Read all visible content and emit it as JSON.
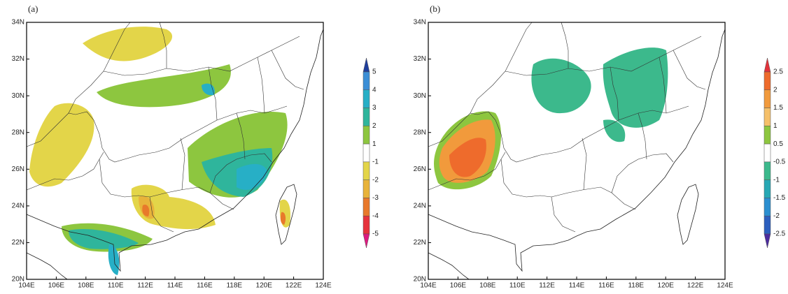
{
  "panels": [
    {
      "label": "(a)",
      "xlim": [
        104,
        124
      ],
      "ylim": [
        20,
        34
      ],
      "xticks": [
        {
          "value": 104,
          "label": "104E"
        },
        {
          "value": 106,
          "label": "106E"
        },
        {
          "value": 108,
          "label": "108E"
        },
        {
          "value": 110,
          "label": "110E"
        },
        {
          "value": 112,
          "label": "112E"
        },
        {
          "value": 114,
          "label": "114E"
        },
        {
          "value": 116,
          "label": "116E"
        },
        {
          "value": 118,
          "label": "118E"
        },
        {
          "value": 120,
          "label": "120E"
        },
        {
          "value": 122,
          "label": "122E"
        },
        {
          "value": 124,
          "label": "124E"
        }
      ],
      "yticks": [
        {
          "value": 20,
          "label": "20N"
        },
        {
          "value": 22,
          "label": "22N"
        },
        {
          "value": 24,
          "label": "24N"
        },
        {
          "value": 26,
          "label": "26N"
        },
        {
          "value": 28,
          "label": "28N"
        },
        {
          "value": 30,
          "label": "30N"
        },
        {
          "value": 32,
          "label": "32N"
        },
        {
          "value": 34,
          "label": "34N"
        }
      ],
      "colorbar": {
        "levels": [
          5,
          4,
          3,
          2,
          1,
          -1,
          -2,
          -3,
          -4,
          -5
        ],
        "colors": [
          "#1f3e9c",
          "#3b8ed6",
          "#27afc6",
          "#2fb59c",
          "#8dc63f",
          "#ffffff",
          "#e3d549",
          "#e8b33a",
          "#e8792b",
          "#e6323c",
          "#dd1a80"
        ]
      }
    },
    {
      "label": "(b)",
      "xlim": [
        104,
        124
      ],
      "ylim": [
        20,
        34
      ],
      "xticks": [
        {
          "value": 104,
          "label": "104E"
        },
        {
          "value": 106,
          "label": "106E"
        },
        {
          "value": 108,
          "label": "108E"
        },
        {
          "value": 110,
          "label": "110E"
        },
        {
          "value": 112,
          "label": "112E"
        },
        {
          "value": 114,
          "label": "114E"
        },
        {
          "value": 116,
          "label": "116E"
        },
        {
          "value": 118,
          "label": "118E"
        },
        {
          "value": 120,
          "label": "120E"
        },
        {
          "value": 122,
          "label": "122E"
        },
        {
          "value": 124,
          "label": "124E"
        }
      ],
      "yticks": [
        {
          "value": 20,
          "label": "20N"
        },
        {
          "value": 22,
          "label": "22N"
        },
        {
          "value": 24,
          "label": "24N"
        },
        {
          "value": 26,
          "label": "26N"
        },
        {
          "value": 28,
          "label": "28N"
        },
        {
          "value": 30,
          "label": "30N"
        },
        {
          "value": 32,
          "label": "32N"
        },
        {
          "value": 34,
          "label": "34N"
        }
      ],
      "colorbar": {
        "levels": [
          2.5,
          2,
          1.5,
          1,
          0.5,
          -0.5,
          -1,
          -1.5,
          -2,
          -2.5
        ],
        "colors": [
          "#e2323a",
          "#ee6b2c",
          "#f19a3c",
          "#f5c06a",
          "#8dc63f",
          "#ffffff",
          "#3cb98c",
          "#27a8b4",
          "#2b8fd0",
          "#2c5fbe",
          "#4c2c9e"
        ]
      }
    }
  ]
}
